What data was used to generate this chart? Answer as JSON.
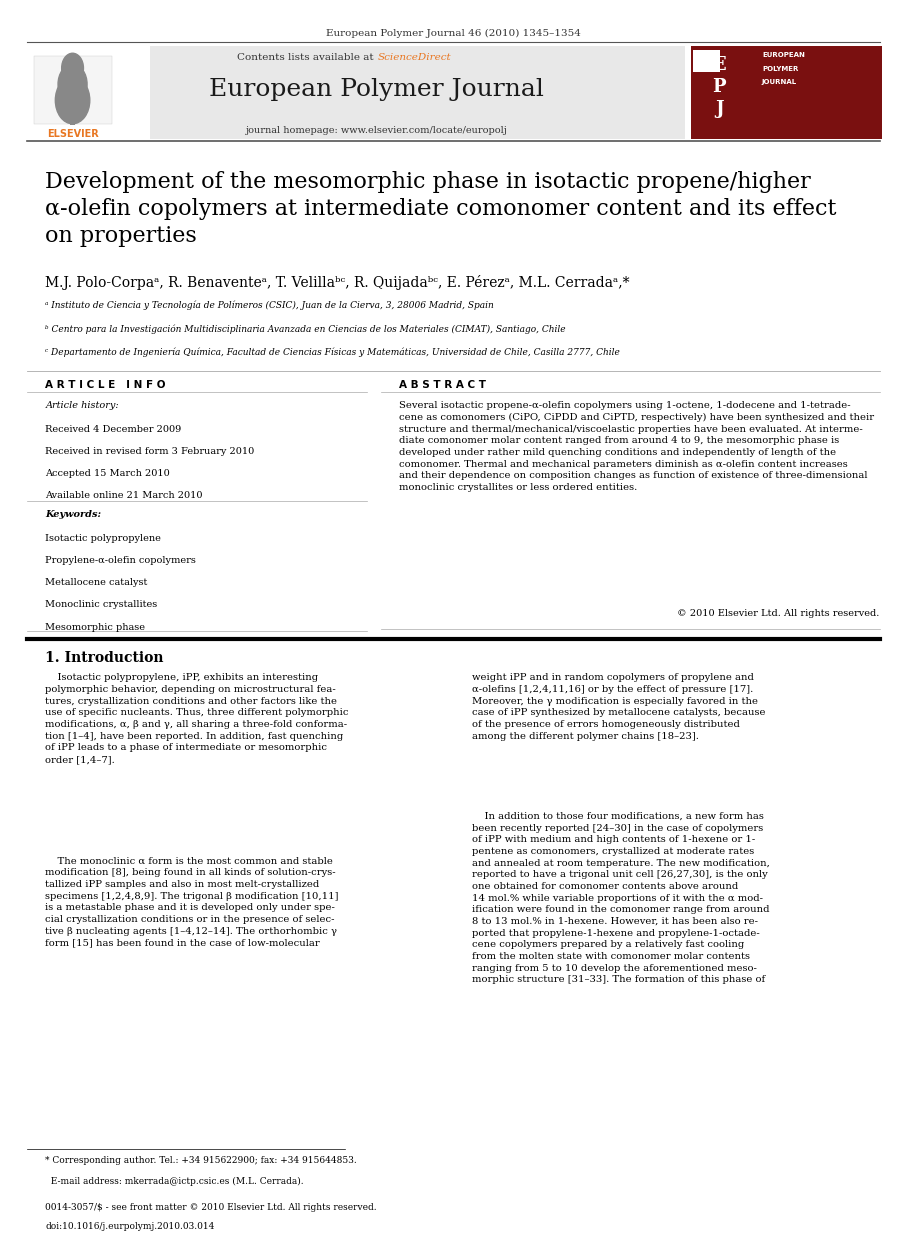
{
  "bg_color": "#ffffff",
  "page_width": 9.07,
  "page_height": 12.38,
  "journal_citation": "European Polymer Journal 46 (2010) 1345–1354",
  "contents_line": "Contents lists available at",
  "sciencedirect": "ScienceDirect",
  "journal_name": "European Polymer Journal",
  "journal_homepage": "journal homepage: www.elsevier.com/locate/europolj",
  "title": "Development of the mesomorphic phase in isotactic propene/higher\nα-olefin copolymers at intermediate comonomer content and its effect\non properties",
  "authors": "M.J. Polo-Corpaᵃ, R. Benaventeᵃ, T. Velillaᵇᶜ, R. Quijadaᵇᶜ, E. Pérezᵃ, M.L. Cerradaᵃ,*",
  "affil_a": "ᵃ Instituto de Ciencia y Tecnología de Polímeros (CSIC), Juan de la Cierva, 3, 28006 Madrid, Spain",
  "affil_b": "ᵇ Centro para la Investigación Multidisciplinaria Avanzada en Ciencias de los Materiales (CIMAT), Santiago, Chile",
  "affil_c": "ᶜ Departamento de Ingeniería Química, Facultad de Ciencias Físicas y Matemáticas, Universidad de Chile, Casilla 2777, Chile",
  "article_info_header": "A R T I C L E   I N F O",
  "abstract_header": "A B S T R A C T",
  "article_history_label": "Article history:",
  "received": "Received 4 December 2009",
  "revised": "Received in revised form 3 February 2010",
  "accepted": "Accepted 15 March 2010",
  "available": "Available online 21 March 2010",
  "keywords_label": "Keywords:",
  "keywords": [
    "Isotactic polypropylene",
    "Propylene-α-olefin copolymers",
    "Metallocene catalyst",
    "Monoclinic crystallites",
    "Mesomorphic phase"
  ],
  "abstract_text": "Several isotactic propene-α-olefin copolymers using 1-octene, 1-dodecene and 1-tetrade-\ncene as comonomers (CiPO, CiPDD and CiPTD, respectively) have been synthesized and their\nstructure and thermal/mechanical/viscoelastic properties have been evaluated. At interme-\ndiate comonomer molar content ranged from around 4 to 9, the mesomorphic phase is\ndeveloped under rather mild quenching conditions and independently of length of the\ncomonomer. Thermal and mechanical parameters diminish as α-olefin content increases\nand their dependence on composition changes as function of existence of three-dimensional\nmonoclinic crystallites or less ordered entities.",
  "copyright": "© 2010 Elsevier Ltd. All rights reserved.",
  "intro_header": "1. Introduction",
  "intro_col1_p1": "    Isotactic polypropylene, iPP, exhibits an interesting\npolymorphic behavior, depending on microstructural fea-\ntures, crystallization conditions and other factors like the\nuse of specific nucleants. Thus, three different polymorphic\nmodifications, α, β and γ, all sharing a three-fold conforma-\ntion [1–4], have been reported. In addition, fast quenching\nof iPP leads to a phase of intermediate or mesomorphic\norder [1,4–7].",
  "intro_col1_p2": "    The monoclinic α form is the most common and stable\nmodification [8], being found in all kinds of solution-crys-\ntallized iPP samples and also in most melt-crystallized\nspecimens [1,2,4,8,9]. The trigonal β modification [10,11]\nis a metastable phase and it is developed only under spe-\ncial crystallization conditions or in the presence of selec-\ntive β nucleating agents [1–4,12–14]. The orthorhombic γ\nform [15] has been found in the case of low-molecular",
  "intro_col2_p1": "weight iPP and in random copolymers of propylene and\nα-olefins [1,2,4,11,16] or by the effect of pressure [17].\nMoreover, the γ modification is especially favored in the\ncase of iPP synthesized by metallocene catalysts, because\nof the presence of errors homogeneously distributed\namong the different polymer chains [18–23].",
  "intro_col2_p2": "    In addition to those four modifications, a new form has\nbeen recently reported [24–30] in the case of copolymers\nof iPP with medium and high contents of 1-hexene or 1-\npentene as comonomers, crystallized at moderate rates\nand annealed at room temperature. The new modification,\nreported to have a trigonal unit cell [26,27,30], is the only\none obtained for comonomer contents above around\n14 mol.% while variable proportions of it with the α mod-\nification were found in the comonomer range from around\n8 to 13 mol.% in 1-hexene. However, it has been also re-\nported that propylene-1-hexene and propylene-1-octade-\ncene copolymers prepared by a relatively fast cooling\nfrom the molten state with comonomer molar contents\nranging from 5 to 10 develop the aforementioned meso-\nmorphic structure [31–33]. The formation of this phase of",
  "footnote1": "* Corresponding author. Tel.: +34 915622900; fax: +34 915644853.",
  "footnote2": "  E-mail address: mkerrada@ictp.csic.es (M.L. Cerrada).",
  "footnote3": "0014-3057/$ - see front matter © 2010 Elsevier Ltd. All rights reserved.",
  "footnote4": "doi:10.1016/j.eurpolymj.2010.03.014"
}
